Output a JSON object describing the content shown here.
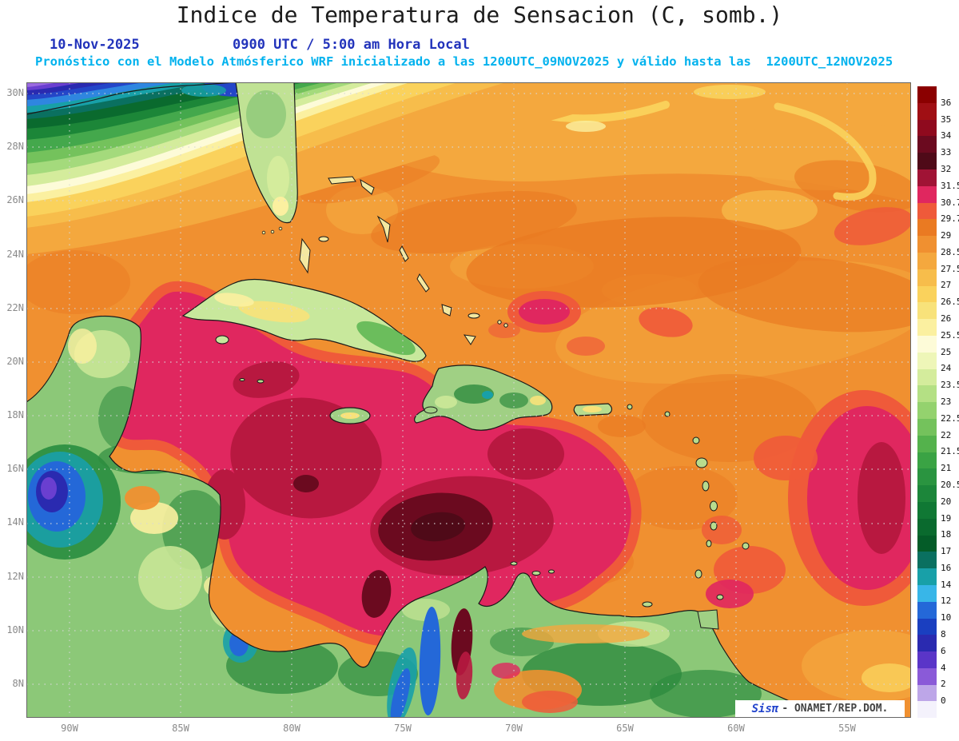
{
  "header": {
    "title": "Indice de Temperatura de Sensacion (C, somb.)",
    "date": "10-Nov-2025",
    "time": "0900 UTC / 5:00 am Hora Local",
    "forecast_line": "Pronóstico con el Modelo Atmósferico WRF inicializado a las 1200UTC_09NOV2025 y válido hasta las  1200UTC_12NOV2025"
  },
  "map": {
    "lat_labels": [
      "30N",
      "28N",
      "26N",
      "24N",
      "22N",
      "20N",
      "18N",
      "16N",
      "14N",
      "12N",
      "10N",
      "8N"
    ],
    "lon_labels": [
      "90W",
      "85W",
      "80W",
      "75W",
      "70W",
      "65W",
      "60W",
      "55W"
    ]
  },
  "colorbar": {
    "labels": [
      "36",
      "35",
      "34",
      "33",
      "32",
      "31.5",
      "30.7",
      "29.7",
      "29",
      "28.5",
      "27.5",
      "27",
      "26.5",
      "26",
      "25.5",
      "25",
      "24",
      "23.5",
      "23",
      "22.5",
      "22",
      "21.5",
      "21",
      "20.5",
      "20",
      "19",
      "18",
      "17",
      "16",
      "14",
      "12",
      "10",
      "8",
      "6",
      "4",
      "2",
      "0"
    ],
    "colors": [
      "#8b0000",
      "#a00f14",
      "#8f0a1e",
      "#6b0a1f",
      "#4f0a18",
      "#a01335",
      "#e0275f",
      "#ef5a3a",
      "#ea7a22",
      "#f09030",
      "#f4a83e",
      "#f7bd4b",
      "#fad25c",
      "#f8e27a",
      "#fbf0a0",
      "#fdfbd8",
      "#eef6b8",
      "#d4ec9c",
      "#b4e084",
      "#94d26e",
      "#74c25c",
      "#54b24c",
      "#3aa344",
      "#2a9440",
      "#1c863a",
      "#107834",
      "#0a6a2e",
      "#045c28",
      "#0a7060",
      "#18a0a8",
      "#38b6e8",
      "#2468d8",
      "#1a3fc0",
      "#2a2ab0",
      "#5a35c8",
      "#8a5ad8",
      "#bda6e8",
      "#f4f2fc"
    ]
  },
  "watermark": {
    "brand": "Sisπ",
    "suffix": "- ONAMET/REP.DOM."
  },
  "chart_data": {
    "type": "heatmap",
    "title": "Indice de Temperatura de Sensacion (C, somb.)",
    "valid_time": "10-Nov-2025 0900 UTC / 5:00 am Hora Local",
    "model": "WRF inicializado 1200UTC_09NOV2025, válido hasta 1200UTC_12NOV2025",
    "unit": "°C",
    "x_ticks": [
      "90W",
      "85W",
      "80W",
      "75W",
      "70W",
      "65W",
      "60W",
      "55W"
    ],
    "y_ticks": [
      "30N",
      "28N",
      "26N",
      "24N",
      "22N",
      "20N",
      "18N",
      "16N",
      "14N",
      "12N",
      "10N",
      "8N"
    ],
    "x_range_deg_west": [
      92,
      52.2
    ],
    "y_range_deg_north": [
      6.8,
      30.4
    ],
    "levels": [
      0,
      2,
      4,
      6,
      8,
      10,
      12,
      14,
      16,
      17,
      18,
      19,
      20,
      20.5,
      21,
      21.5,
      22,
      22.5,
      23,
      23.5,
      24,
      25,
      25.5,
      26,
      26.5,
      27,
      27.5,
      28.5,
      29,
      29.7,
      30.7,
      31.5,
      32,
      33,
      34,
      35,
      36
    ],
    "legend_position": "right",
    "grid": true,
    "regions": [
      {
        "area": "Central and western Caribbean Sea",
        "heat_index_c": "30.7-32"
      },
      {
        "area": "Southwestern Caribbean hot core (~13-14N, 72-75W)",
        "heat_index_c": "32-34"
      },
      {
        "area": "Open tropical Atlantic",
        "heat_index_c": "28.5-29.7"
      },
      {
        "area": "Gulf of Mexico / SE United States behind cold front",
        "heat_index_c": "0-24, decreasing northwestward"
      },
      {
        "area": "Greater Antilles and Central American land interiors",
        "heat_index_c": "20-27"
      },
      {
        "area": "Guatemalan / Costa Rican / Andean highlands",
        "heat_index_c": "4-16"
      },
      {
        "area": "Eastern Atlantic edge (~55W, 12-20N)",
        "heat_index_c": "29.7-31.5"
      }
    ]
  }
}
